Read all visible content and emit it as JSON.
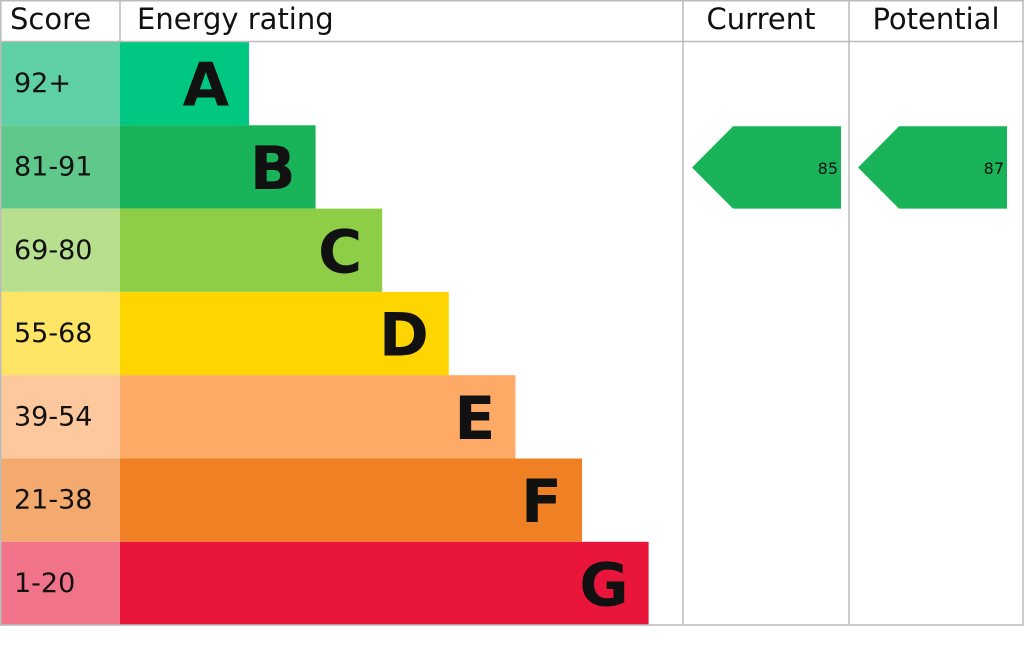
{
  "chart_data": {
    "type": "epc",
    "columns": [
      "Score",
      "Energy rating",
      "Current",
      "Potential"
    ],
    "bands": [
      {
        "score": "92+",
        "letter": "A",
        "color": "#00c781",
        "score_color": "#5fcfa5"
      },
      {
        "score": "81-91",
        "letter": "B",
        "color": "#19b459",
        "score_color": "#5fc88a"
      },
      {
        "score": "69-80",
        "letter": "C",
        "color": "#8dce46",
        "score_color": "#b8df8e"
      },
      {
        "score": "55-68",
        "letter": "D",
        "color": "#ffd500",
        "score_color": "#ffe566"
      },
      {
        "score": "39-54",
        "letter": "E",
        "color": "#fcaa65",
        "score_color": "#fdc89d"
      },
      {
        "score": "21-38",
        "letter": "F",
        "color": "#ef8023",
        "score_color": "#f4aa6e"
      },
      {
        "score": "1-20",
        "letter": "G",
        "color": "#e9153b",
        "score_color": "#f07389"
      }
    ],
    "current": 85,
    "potential": 87,
    "arrow_color": "#19b459"
  }
}
